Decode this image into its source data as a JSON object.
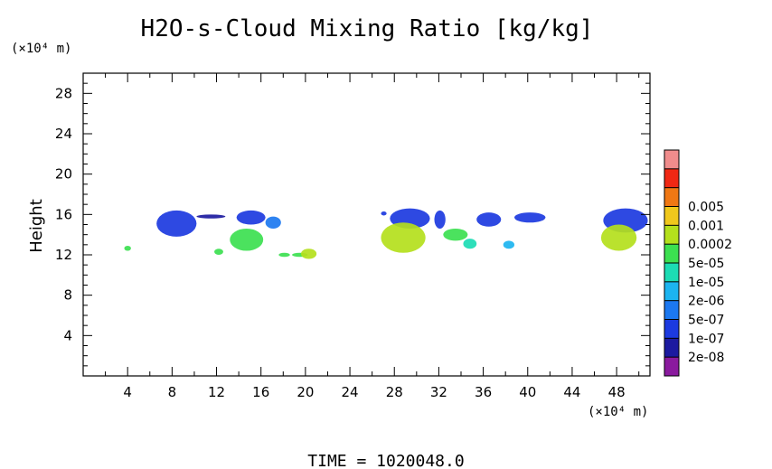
{
  "chart_data": {
    "type": "heatmap",
    "title": "H2O-s-Cloud Mixing Ratio [kg/kg]",
    "ylabel": "Height",
    "x_unit": "(×10⁴ m)",
    "y_unit": "(×10⁴ m)",
    "time_label": "TIME = 1020048.0",
    "xlim": [
      0,
      51
    ],
    "ylim": [
      0,
      30
    ],
    "x_ticks": [
      "4",
      "8",
      "12",
      "16",
      "20",
      "24",
      "28",
      "32",
      "36",
      "40",
      "44",
      "48"
    ],
    "x_tick_values": [
      4,
      8,
      12,
      16,
      20,
      24,
      28,
      32,
      36,
      40,
      44,
      48
    ],
    "y_ticks": [
      "4",
      "8",
      "12",
      "16",
      "20",
      "24",
      "28"
    ],
    "y_tick_values": [
      4,
      8,
      12,
      16,
      20,
      24,
      28
    ],
    "colorbar": {
      "levels": [
        {
          "label": "",
          "color": "#8a1a9e"
        },
        {
          "label": "2e-08",
          "color": "#1c1aa0"
        },
        {
          "label": "1e-07",
          "color": "#1c3ae0"
        },
        {
          "label": "5e-07",
          "color": "#1c78f0"
        },
        {
          "label": "2e-06",
          "color": "#1cb4f0"
        },
        {
          "label": "1e-05",
          "color": "#1cdcb4"
        },
        {
          "label": "5e-05",
          "color": "#3ce050"
        },
        {
          "label": "0.0002",
          "color": "#b4e01c"
        },
        {
          "label": "0.001",
          "color": "#f0c81c"
        },
        {
          "label": "0.005",
          "color": "#f07814"
        },
        {
          "label": "",
          "color": "#f02814"
        },
        {
          "label": "",
          "color": "#f08c8c"
        }
      ]
    },
    "cloud_regions": [
      {
        "x": [
          6.6,
          10.2
        ],
        "y": [
          13.8,
          16.4
        ],
        "level": "1e-07"
      },
      {
        "x": [
          10.2,
          12.8
        ],
        "y": [
          15.6,
          16.0
        ],
        "level": "2e-08"
      },
      {
        "x": [
          13.8,
          16.4
        ],
        "y": [
          15.0,
          16.4
        ],
        "level": "1e-07"
      },
      {
        "x": [
          16.4,
          17.8
        ],
        "y": [
          14.6,
          15.8
        ],
        "level": "5e-07"
      },
      {
        "x": [
          13.2,
          16.2
        ],
        "y": [
          12.4,
          14.6
        ],
        "level": "5e-05"
      },
      {
        "x": [
          11.8,
          12.6
        ],
        "y": [
          12.0,
          12.6
        ],
        "level": "5e-05"
      },
      {
        "x": [
          17.6,
          18.6
        ],
        "y": [
          11.8,
          12.2
        ],
        "level": "5e-05"
      },
      {
        "x": [
          18.8,
          20.2
        ],
        "y": [
          11.8,
          12.2
        ],
        "level": "5e-05"
      },
      {
        "x": [
          19.6,
          21.0
        ],
        "y": [
          11.6,
          12.6
        ],
        "level": "0.0002"
      },
      {
        "x": [
          3.7,
          4.3
        ],
        "y": [
          12.4,
          12.9
        ],
        "level": "5e-05"
      },
      {
        "x": [
          26.8,
          27.3
        ],
        "y": [
          15.9,
          16.3
        ],
        "level": "1e-07"
      },
      {
        "x": [
          27.6,
          31.2
        ],
        "y": [
          14.6,
          16.6
        ],
        "level": "1e-07"
      },
      {
        "x": [
          26.8,
          30.8
        ],
        "y": [
          12.2,
          15.2
        ],
        "level": "0.0002"
      },
      {
        "x": [
          31.6,
          32.6
        ],
        "y": [
          14.6,
          16.4
        ],
        "level": "1e-07"
      },
      {
        "x": [
          32.4,
          34.6
        ],
        "y": [
          13.4,
          14.6
        ],
        "level": "5e-05"
      },
      {
        "x": [
          34.2,
          35.4
        ],
        "y": [
          12.6,
          13.6
        ],
        "level": "1e-05"
      },
      {
        "x": [
          35.4,
          37.6
        ],
        "y": [
          14.8,
          16.2
        ],
        "level": "1e-07"
      },
      {
        "x": [
          37.8,
          38.8
        ],
        "y": [
          12.6,
          13.4
        ],
        "level": "2e-06"
      },
      {
        "x": [
          38.8,
          41.6
        ],
        "y": [
          15.2,
          16.2
        ],
        "level": "1e-07"
      },
      {
        "x": [
          46.8,
          50.8
        ],
        "y": [
          14.2,
          16.6
        ],
        "level": "1e-07"
      },
      {
        "x": [
          46.6,
          49.8
        ],
        "y": [
          12.4,
          15.0
        ],
        "level": "0.0002"
      }
    ]
  }
}
